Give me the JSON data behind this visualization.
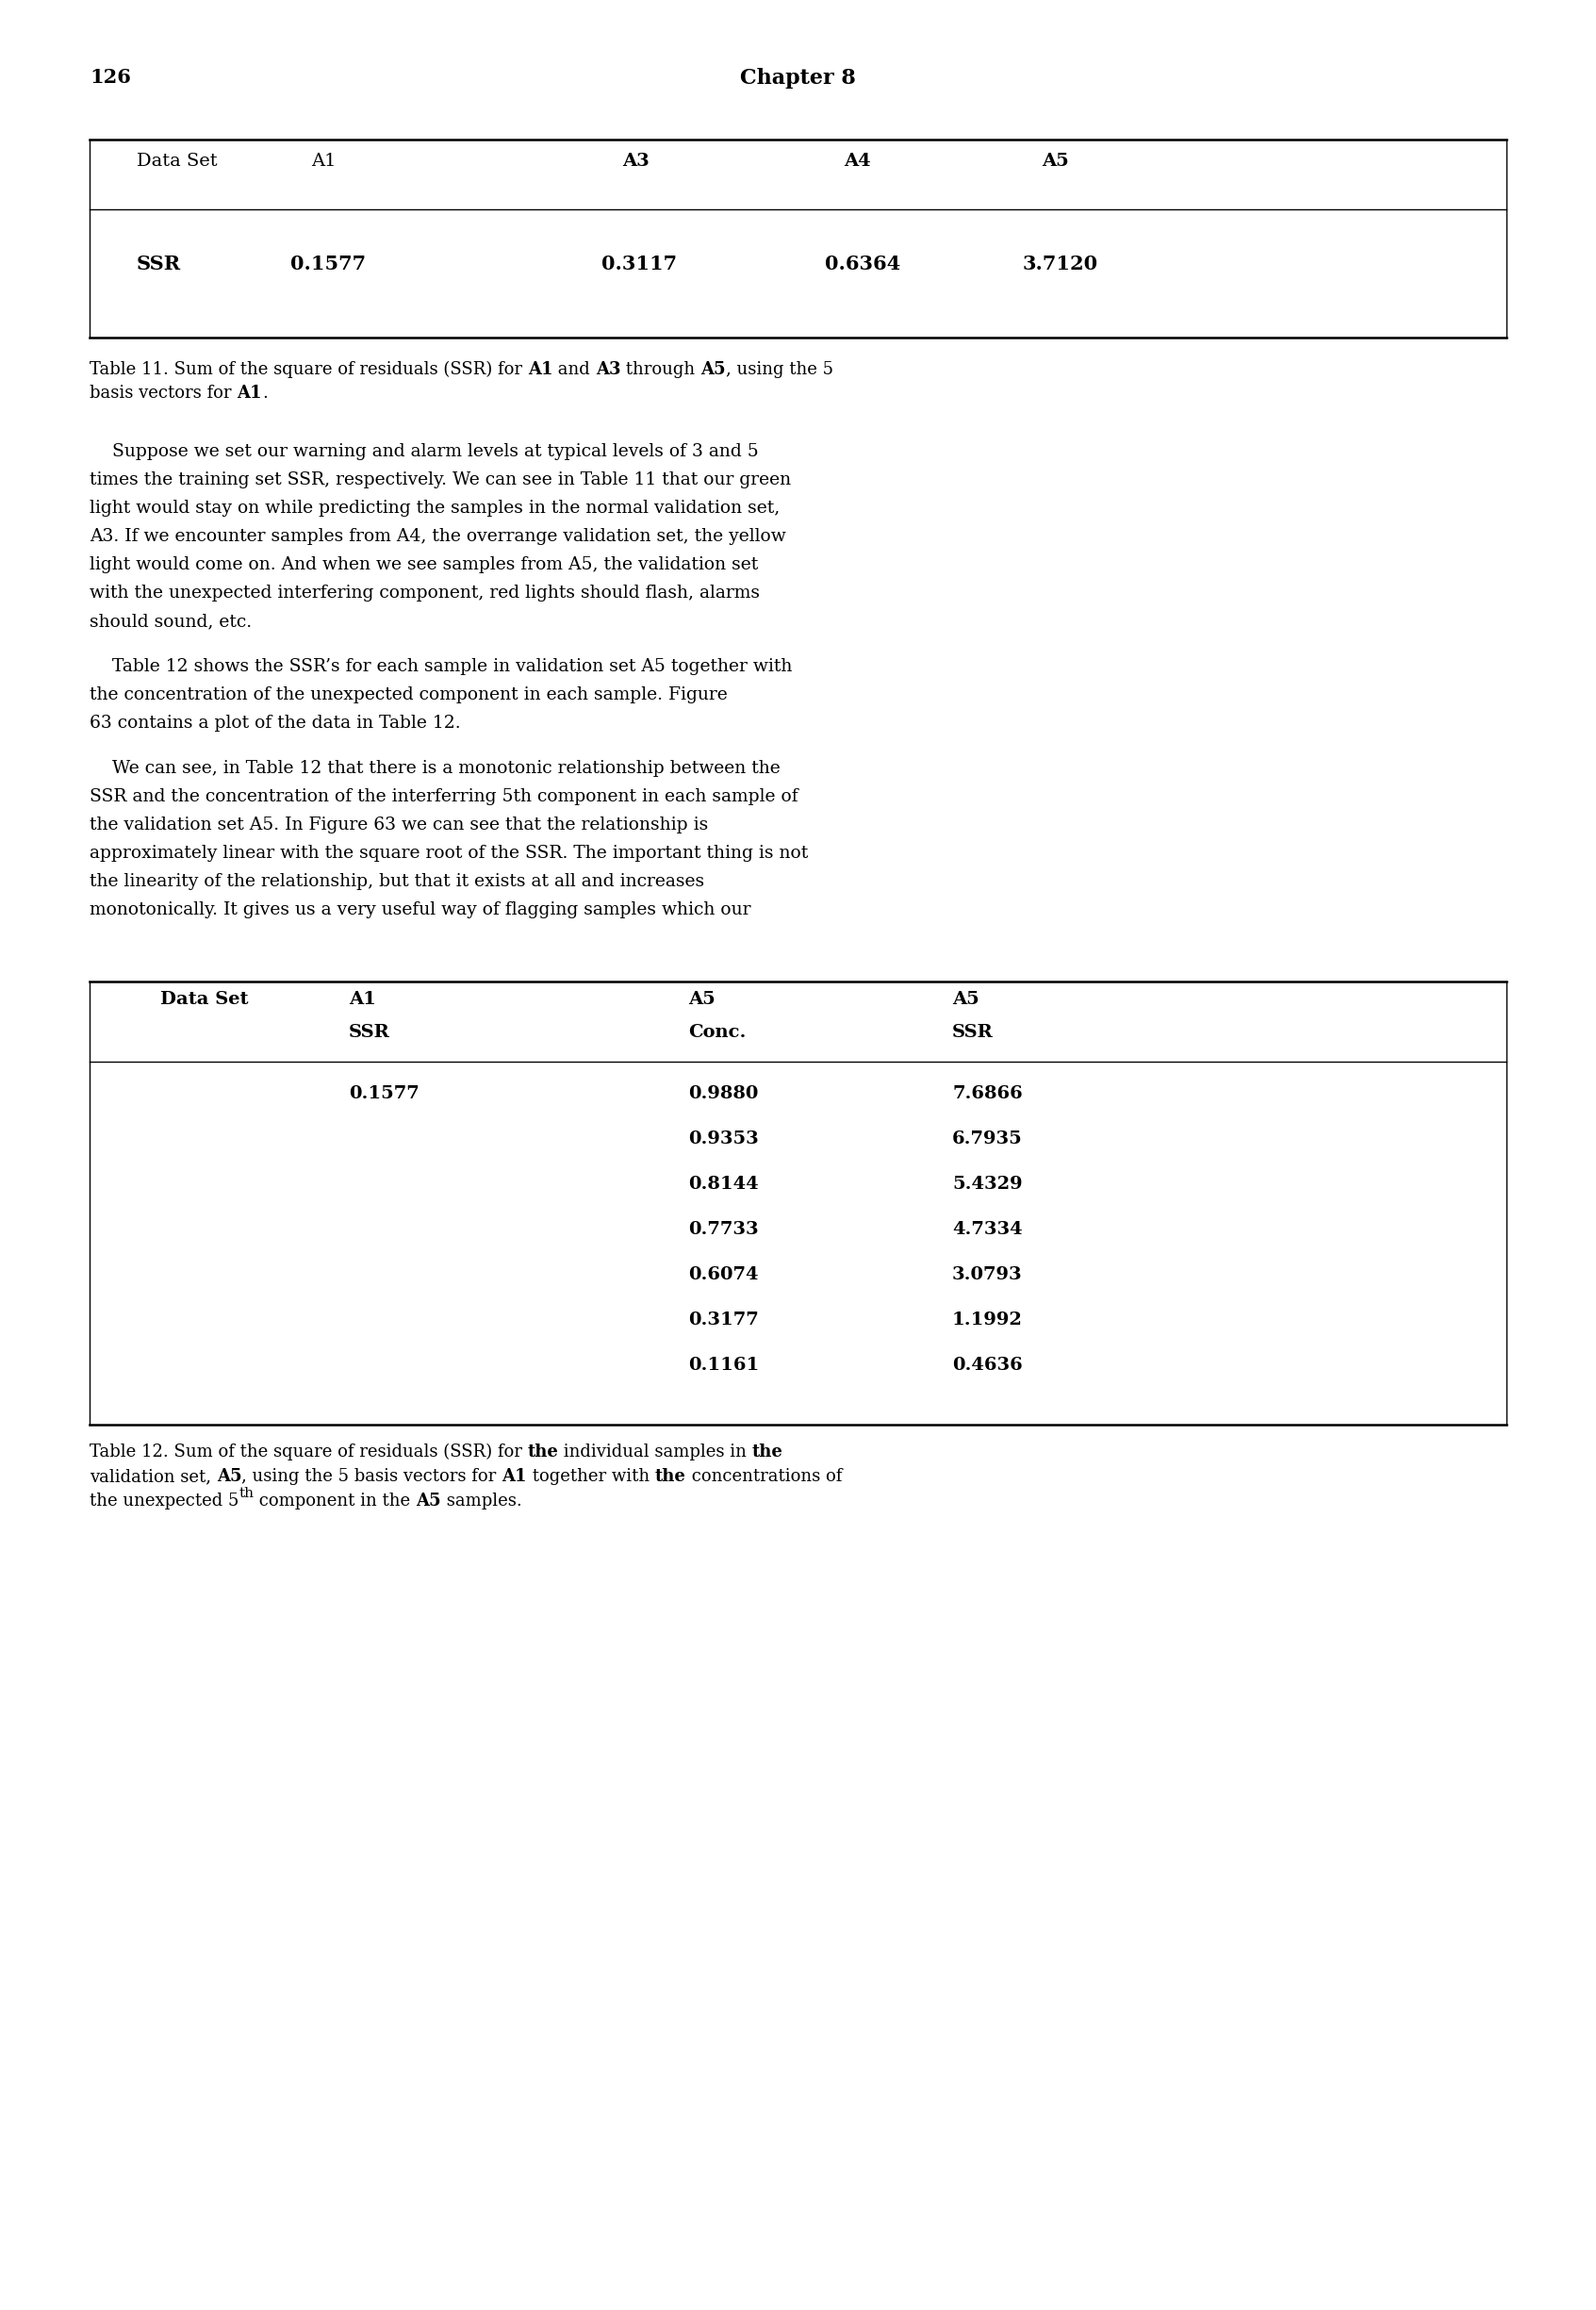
{
  "page_number": "126",
  "chapter_title": "Chapter 8",
  "table11": {
    "headers": [
      "Data Set",
      "A1",
      "A3",
      "A4",
      "A5"
    ],
    "header_bold": [
      false,
      false,
      true,
      true,
      true
    ],
    "row": [
      "SSR",
      "0.1577",
      "0.3117",
      "0.6364",
      "3.7120"
    ],
    "row_bold": [
      true,
      true,
      true,
      true,
      true
    ]
  },
  "caption11_parts": [
    {
      "text": "Table 11. Sum of the square of residuals (SSR) for ",
      "bold": false
    },
    {
      "text": "A1",
      "bold": true
    },
    {
      "text": " and ",
      "bold": false
    },
    {
      "text": "A3",
      "bold": true
    },
    {
      "text": " through ",
      "bold": false
    },
    {
      "text": "A5",
      "bold": true
    },
    {
      "text": ", using the 5",
      "bold": false
    }
  ],
  "caption11_line2": "basis vectors for ",
  "caption11_line2_bold": "A1",
  "caption11_line2_after": ".",
  "paragraph1_lines": [
    "    Suppose we set our warning and alarm levels at typical levels of 3 and 5",
    "times the training set SSR, respectively. We can see in Table 11 that our green",
    "light would stay on while predicting the samples in the normal validation set,",
    "A3. If we encounter samples from A4, the overrange validation set, the yellow",
    "light would come on. And when we see samples from A5, the validation set",
    "with the unexpected interfering component, red lights should flash, alarms",
    "should sound, etc."
  ],
  "paragraph2_lines": [
    "    Table 12 shows the SSR’s for each sample in validation set A5 together with",
    "the concentration of the unexpected component in each sample. Figure",
    "63 contains a plot of the data in Table 12."
  ],
  "paragraph3_lines": [
    "    We can see, in Table 12 that there is a monotonic relationship between the",
    "SSR and the concentration of the interferring 5th component in each sample of",
    "the validation set A5. In Figure 63 we can see that the relationship is",
    "approximately linear with the square root of the SSR. The important thing is not",
    "the linearity of the relationship, but that it exists at all and increases",
    "monotonically. It gives us a very useful way of flagging samples which our"
  ],
  "table12": {
    "a1_ssr": "0.1577",
    "data_rows": [
      [
        "0.9880",
        "7.6866"
      ],
      [
        "0.9353",
        "6.7935"
      ],
      [
        "0.8144",
        "5.4329"
      ],
      [
        "0.7733",
        "4.7334"
      ],
      [
        "0.6074",
        "3.0793"
      ],
      [
        "0.3177",
        "1.1992"
      ],
      [
        "0.1161",
        "0.4636"
      ]
    ]
  },
  "bg_color": "#ffffff",
  "text_color": "#000000"
}
